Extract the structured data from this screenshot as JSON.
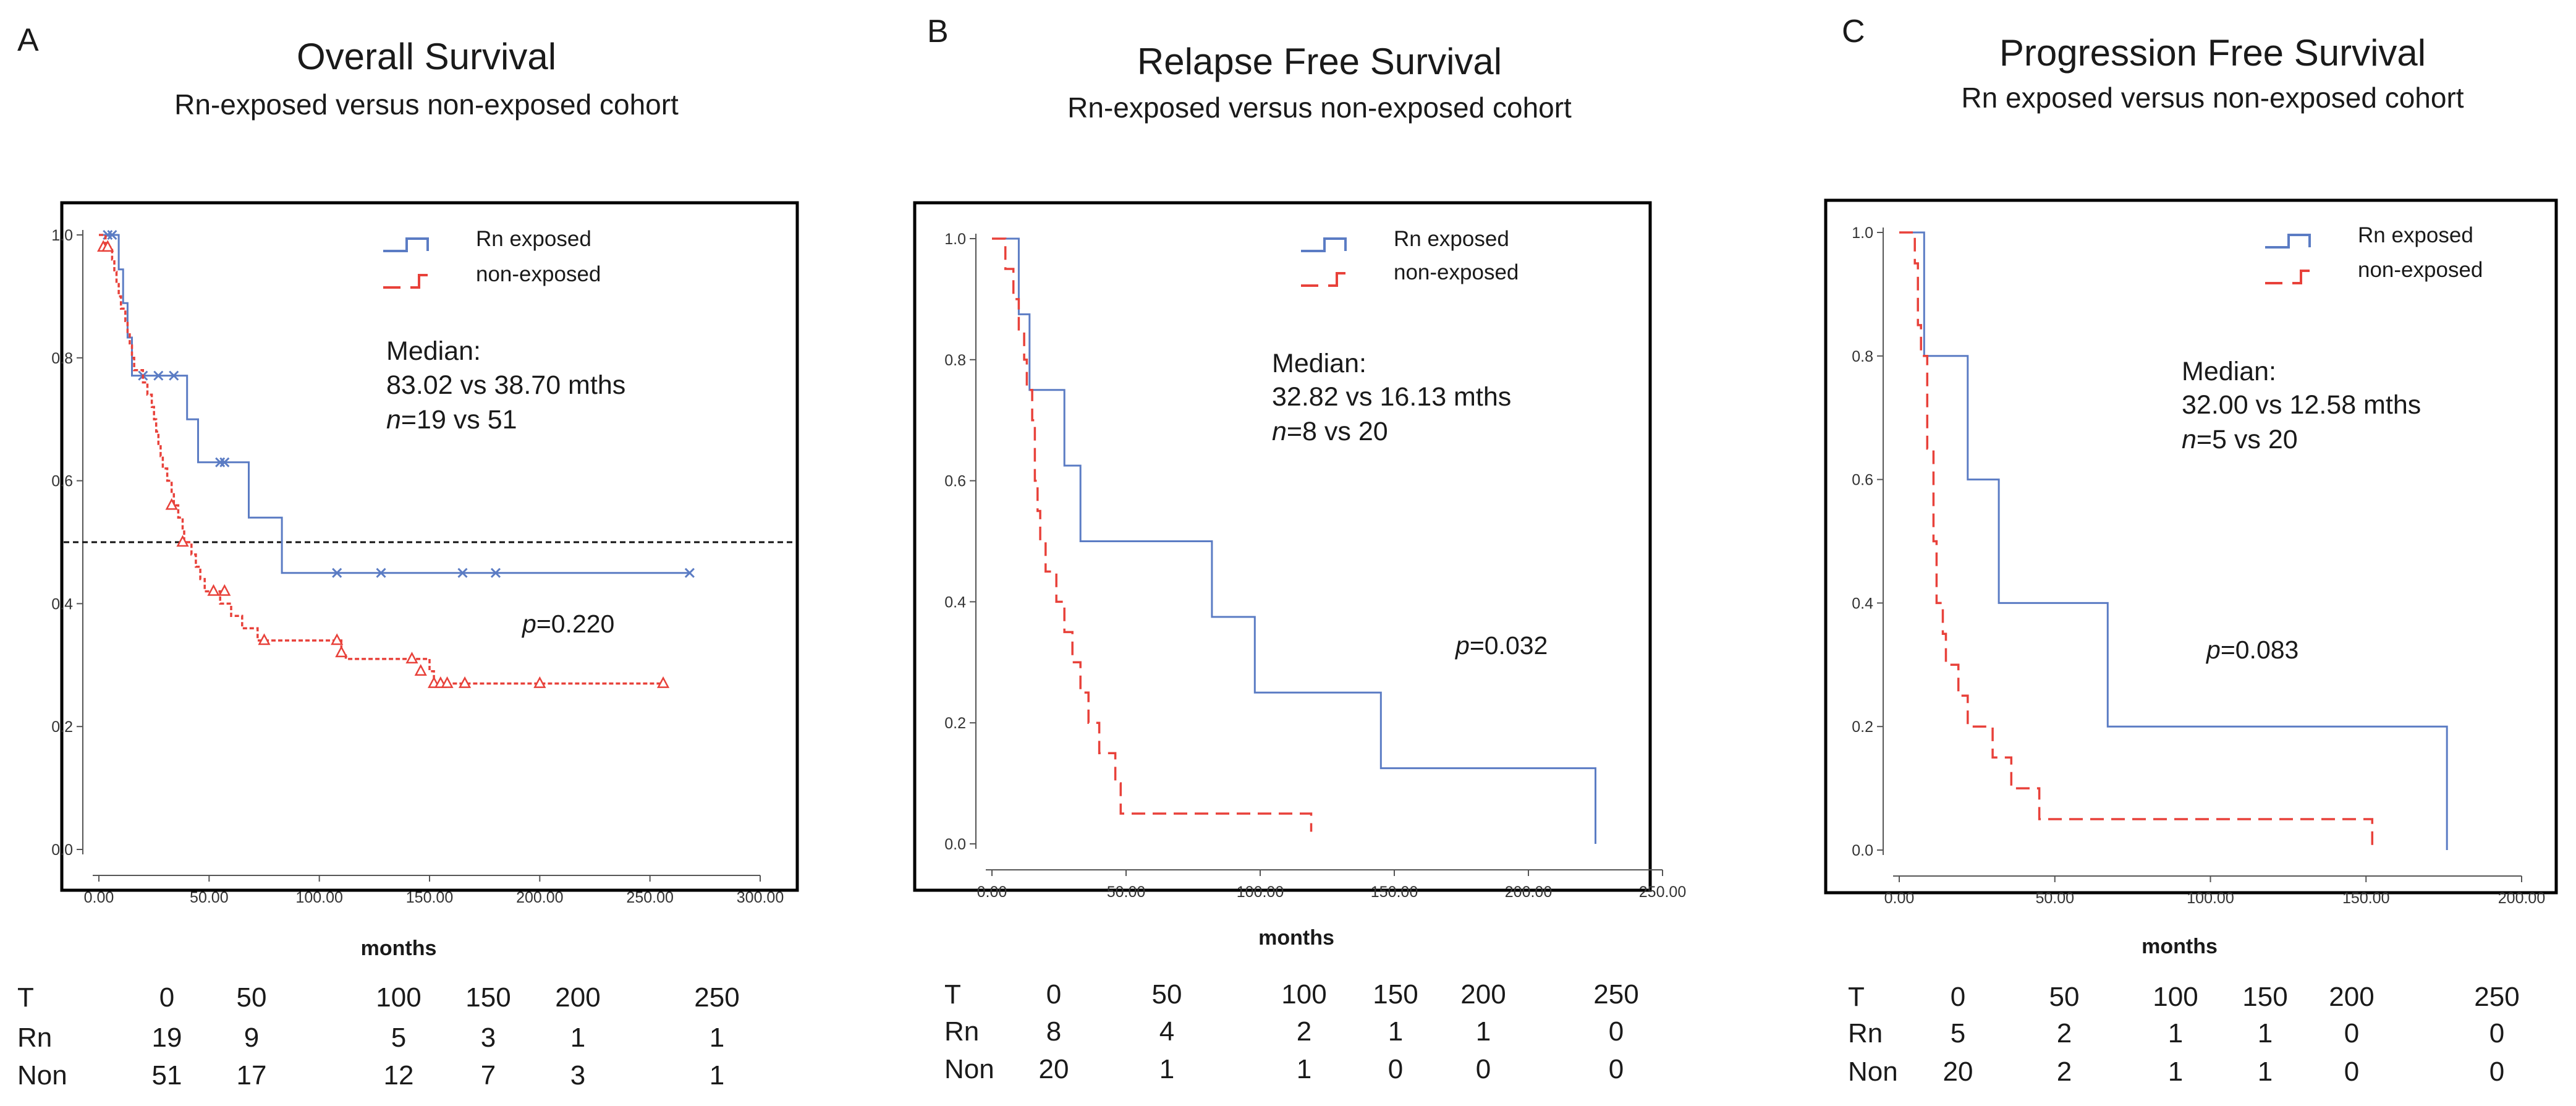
{
  "chart_data": [
    {
      "type": "line",
      "panel_label": "A",
      "title": "Overall Survival",
      "subtitle": "Rn-exposed versus non-exposed cohort",
      "xlabel": "months",
      "ylabel": "",
      "xlim": [
        0,
        300
      ],
      "ylim": [
        0,
        1
      ],
      "x_ticks": [
        "0.00",
        "50.00",
        "100.00",
        "150.00",
        "200.00",
        "250.00",
        "300.00"
      ],
      "y_ticks": [
        "0.0",
        "0.2",
        "0.4",
        "0.6",
        "0.8",
        "1.0"
      ],
      "legend": [
        "Rn exposed",
        "non-exposed"
      ],
      "reference_line_y": 0.5,
      "median_label": "Median:",
      "median_text": "83.02 vs 38.70 mths",
      "n_text": "=19 vs 51",
      "p_text": "=0.220",
      "series": [
        {
          "name": "Rn exposed",
          "color": "#5b7cc4",
          "dashed": false,
          "marker": "x",
          "steps": [
            [
              0,
              1.0
            ],
            [
              9,
              0.944
            ],
            [
              11,
              0.889
            ],
            [
              13,
              0.833
            ],
            [
              15,
              0.771
            ],
            [
              40,
              0.7
            ],
            [
              45,
              0.63
            ],
            [
              68,
              0.54
            ],
            [
              83.02,
              0.45
            ],
            [
              268,
              0.45
            ]
          ],
          "censors": [
            [
              4,
              1.0
            ],
            [
              6,
              1.0
            ],
            [
              20,
              0.771
            ],
            [
              27,
              0.771
            ],
            [
              34,
              0.771
            ],
            [
              55,
              0.63
            ],
            [
              57,
              0.63
            ],
            [
              108,
              0.45
            ],
            [
              128,
              0.45
            ],
            [
              165,
              0.45
            ],
            [
              180,
              0.45
            ],
            [
              268,
              0.45
            ]
          ]
        },
        {
          "name": "non-exposed",
          "color": "#e8413a",
          "dashed": true,
          "marker": "triangle",
          "steps": [
            [
              0,
              1.0
            ],
            [
              3,
              0.98
            ],
            [
              6,
              0.96
            ],
            [
              7,
              0.94
            ],
            [
              8,
              0.92
            ],
            [
              9,
              0.9
            ],
            [
              10,
              0.88
            ],
            [
              12,
              0.86
            ],
            [
              13,
              0.84
            ],
            [
              14,
              0.82
            ],
            [
              15,
              0.8
            ],
            [
              16,
              0.78
            ],
            [
              20,
              0.76
            ],
            [
              22,
              0.74
            ],
            [
              24,
              0.72
            ],
            [
              25,
              0.7
            ],
            [
              26,
              0.68
            ],
            [
              27,
              0.66
            ],
            [
              28,
              0.64
            ],
            [
              29,
              0.62
            ],
            [
              31,
              0.6
            ],
            [
              33,
              0.58
            ],
            [
              34,
              0.56
            ],
            [
              36,
              0.54
            ],
            [
              38,
              0.52
            ],
            [
              38.7,
              0.5
            ],
            [
              42,
              0.48
            ],
            [
              44,
              0.46
            ],
            [
              46,
              0.44
            ],
            [
              48,
              0.42
            ],
            [
              55,
              0.4
            ],
            [
              60,
              0.38
            ],
            [
              65,
              0.36
            ],
            [
              72,
              0.34
            ],
            [
              110,
              0.32
            ],
            [
              112,
              0.31
            ],
            [
              150,
              0.29
            ],
            [
              152,
              0.27
            ],
            [
              256,
              0.27
            ]
          ],
          "censors": [
            [
              2,
              0.98
            ],
            [
              4,
              0.98
            ],
            [
              33,
              0.56
            ],
            [
              38,
              0.5
            ],
            [
              52,
              0.42
            ],
            [
              57,
              0.42
            ],
            [
              75,
              0.34
            ],
            [
              108,
              0.34
            ],
            [
              110,
              0.32
            ],
            [
              142,
              0.31
            ],
            [
              146,
              0.29
            ],
            [
              152,
              0.27
            ],
            [
              155,
              0.27
            ],
            [
              158,
              0.27
            ],
            [
              166,
              0.27
            ],
            [
              200,
              0.27
            ],
            [
              256,
              0.27
            ]
          ]
        }
      ],
      "risk_table": {
        "rows": [
          [
            "T",
            "0",
            "50",
            "100",
            "150",
            "200",
            "250"
          ],
          [
            "Rn",
            "19",
            "9",
            "5",
            "3",
            "1",
            "1"
          ],
          [
            "Non",
            "51",
            "17",
            "12",
            "7",
            "3",
            "1"
          ]
        ]
      }
    },
    {
      "type": "line",
      "panel_label": "B",
      "title": "Relapse Free Survival",
      "subtitle": "Rn-exposed versus non-exposed cohort",
      "xlabel": "months",
      "ylabel": "",
      "xlim": [
        0,
        250
      ],
      "ylim": [
        0,
        1
      ],
      "x_ticks": [
        "0.00",
        "50.00",
        "100.00",
        "150.00",
        "200.00",
        "250.00"
      ],
      "y_ticks": [
        "0.0",
        "0.2",
        "0.4",
        "0.6",
        "0.8",
        "1.0"
      ],
      "legend": [
        "Rn exposed",
        "non-exposed"
      ],
      "reference_line_y": null,
      "median_label": "Median:",
      "median_text": "32.82 vs 16.13 mths",
      "n_text": "=8 vs 20",
      "p_text": "=0.032",
      "series": [
        {
          "name": "Rn exposed",
          "color": "#5b7cc4",
          "dashed": false,
          "marker": "none",
          "steps": [
            [
              0,
              1.0
            ],
            [
              10,
              0.875
            ],
            [
              14,
              0.75
            ],
            [
              27,
              0.625
            ],
            [
              33,
              0.5
            ],
            [
              82,
              0.375
            ],
            [
              98,
              0.25
            ],
            [
              145,
              0.125
            ],
            [
              225,
              0.0
            ]
          ],
          "censors": []
        },
        {
          "name": "non-exposed",
          "color": "#e8413a",
          "dashed": true,
          "marker": "none",
          "steps": [
            [
              0,
              1.0
            ],
            [
              5,
              0.95
            ],
            [
              8,
              0.9
            ],
            [
              10,
              0.85
            ],
            [
              12,
              0.8
            ],
            [
              13,
              0.75
            ],
            [
              15,
              0.7
            ],
            [
              16,
              0.6
            ],
            [
              17,
              0.55
            ],
            [
              18,
              0.5
            ],
            [
              20,
              0.45
            ],
            [
              24,
              0.4
            ],
            [
              27,
              0.35
            ],
            [
              30,
              0.3
            ],
            [
              33,
              0.25
            ],
            [
              36,
              0.2
            ],
            [
              40,
              0.15
            ],
            [
              46,
              0.1
            ],
            [
              48,
              0.05
            ],
            [
              118,
              0.05
            ],
            [
              119,
              0.02
            ]
          ],
          "censors": []
        }
      ],
      "risk_table": {
        "rows": [
          [
            "T",
            "0",
            "50",
            "100",
            "150",
            "200",
            "250"
          ],
          [
            "Rn",
            "8",
            "4",
            "2",
            "1",
            "1",
            "0"
          ],
          [
            "Non",
            "20",
            "1",
            "1",
            "0",
            "0",
            "0"
          ]
        ]
      }
    },
    {
      "type": "line",
      "panel_label": "C",
      "title": "Progression Free Survival",
      "subtitle": "Rn exposed versus non-exposed cohort",
      "xlabel": "months",
      "ylabel": "",
      "xlim": [
        0,
        200
      ],
      "ylim": [
        0,
        1
      ],
      "x_ticks": [
        "0.00",
        "50.00",
        "100.00",
        "150.00",
        "200.00"
      ],
      "y_ticks": [
        "0.0",
        "0.2",
        "0.4",
        "0.6",
        "0.8",
        "1.0"
      ],
      "legend": [
        "Rn exposed",
        "non-exposed"
      ],
      "reference_line_y": null,
      "median_label": "Median:",
      "median_text": "32.00 vs 12.58 mths",
      "n_text": "=5 vs 20",
      "p_text": "=0.083",
      "series": [
        {
          "name": "Rn exposed",
          "color": "#5b7cc4",
          "dashed": false,
          "marker": "none",
          "steps": [
            [
              0,
              1.0
            ],
            [
              8,
              0.8
            ],
            [
              22,
              0.6
            ],
            [
              32,
              0.4
            ],
            [
              67,
              0.2
            ],
            [
              176,
              0.0
            ]
          ],
          "censors": []
        },
        {
          "name": "non-exposed",
          "color": "#e8413a",
          "dashed": true,
          "marker": "none",
          "steps": [
            [
              0,
              1.0
            ],
            [
              5,
              0.95
            ],
            [
              6,
              0.85
            ],
            [
              7,
              0.8
            ],
            [
              9,
              0.65
            ],
            [
              11,
              0.5
            ],
            [
              12,
              0.4
            ],
            [
              14,
              0.35
            ],
            [
              15,
              0.3
            ],
            [
              19,
              0.25
            ],
            [
              22,
              0.2
            ],
            [
              30,
              0.15
            ],
            [
              36,
              0.1
            ],
            [
              45,
              0.05
            ],
            [
              151,
              0.05
            ],
            [
              152,
              0.0
            ]
          ],
          "censors": []
        }
      ],
      "risk_table": {
        "rows": [
          [
            "T",
            "0",
            "50",
            "100",
            "150",
            "200",
            "250"
          ],
          [
            "Rn",
            "5",
            "2",
            "1",
            "1",
            "0",
            "0"
          ],
          [
            "Non",
            "20",
            "2",
            "1",
            "1",
            "0",
            "0"
          ]
        ]
      }
    }
  ]
}
